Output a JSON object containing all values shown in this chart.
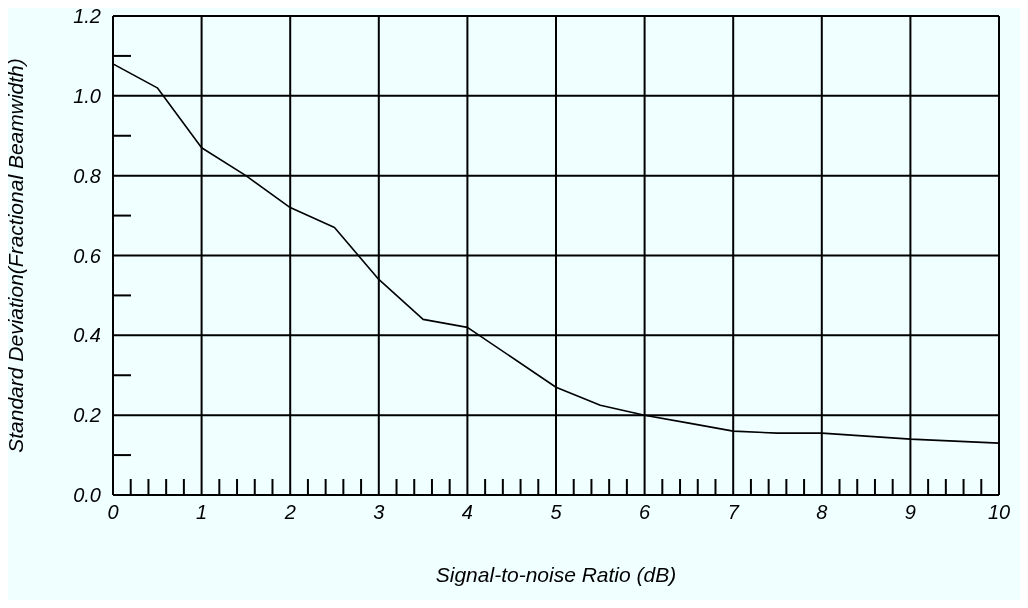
{
  "chart_data": {
    "type": "line",
    "xlabel": "Signal-to-noise Ratio (dB)",
    "ylabel": "Standard Deviation(Fractional Beamwidth)",
    "x": [
      0,
      0.5,
      1,
      1.5,
      2,
      2.5,
      3,
      3.5,
      4,
      5,
      5.5,
      6,
      6.5,
      7,
      7.5,
      8,
      9,
      10
    ],
    "series": [
      {
        "color": "#000000",
        "values": [
          1.08,
          1.02,
          0.87,
          0.8,
          0.72,
          0.67,
          0.54,
          0.44,
          0.42,
          0.27,
          0.225,
          0.2,
          0.18,
          0.16,
          0.155,
          0.155,
          0.14,
          0.13
        ]
      }
    ],
    "xlim": [
      0,
      10
    ],
    "xticks": [
      0,
      1,
      2,
      3,
      4,
      5,
      6,
      7,
      8,
      9,
      10
    ],
    "ylim": [
      0,
      1.2
    ],
    "yticks": [
      {
        "value": 0,
        "label": "0.0"
      },
      {
        "value": 0.2,
        "label": "0.2"
      },
      {
        "value": 0.4,
        "label": "0.4"
      },
      {
        "value": 0.6,
        "label": "0.6"
      },
      {
        "value": 0.8,
        "label": "0.8"
      },
      {
        "value": 1,
        "label": "1.0"
      },
      {
        "value": 1.2,
        "label": "1.2"
      }
    ],
    "grid": true,
    "marker": "none",
    "line_style": "solid"
  }
}
